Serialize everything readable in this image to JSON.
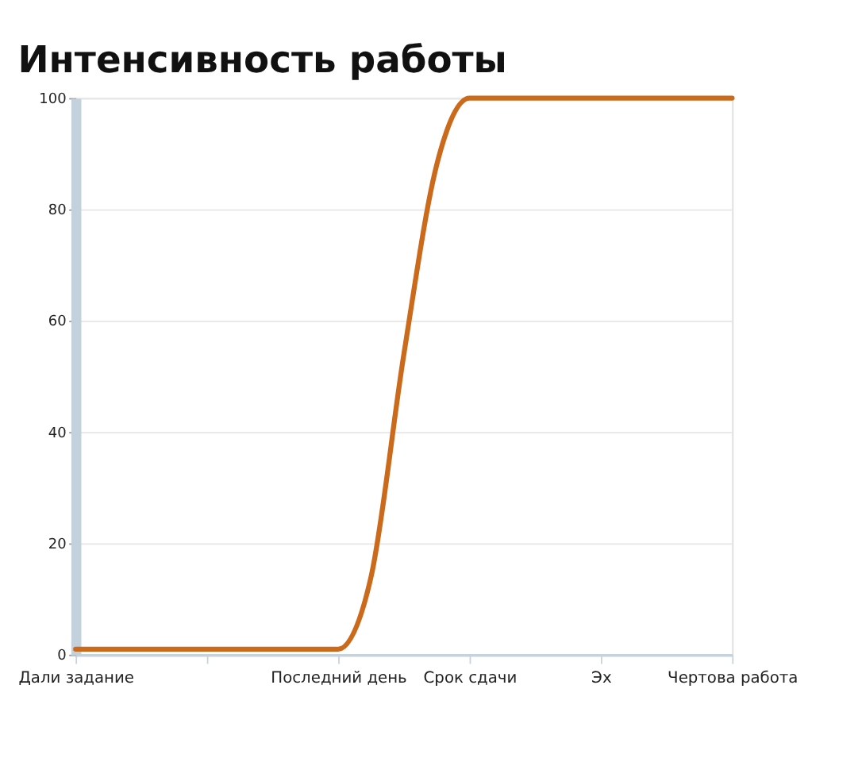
{
  "chart_data": {
    "type": "line",
    "title": "Интенсивность работы",
    "categories": [
      "Дали задание",
      null,
      null,
      null,
      null,
      null,
      null,
      null,
      "Последний день",
      null,
      null,
      null,
      "Срок сдачи",
      null,
      null,
      null,
      "Эх",
      null,
      null,
      null,
      "Чертова работа"
    ],
    "series": [
      {
        "color": "#cc6a1c",
        "values": [
          1,
          1,
          1,
          1,
          1,
          1,
          1,
          1,
          1,
          14,
          54,
          88,
          100,
          100,
          100,
          100,
          100,
          100,
          100,
          100,
          100
        ]
      }
    ],
    "ylim": [
      0,
      100
    ],
    "yticks": [
      0,
      20,
      40,
      60,
      80,
      100
    ],
    "grid": "y",
    "marker": "none",
    "line_style": "solid"
  }
}
